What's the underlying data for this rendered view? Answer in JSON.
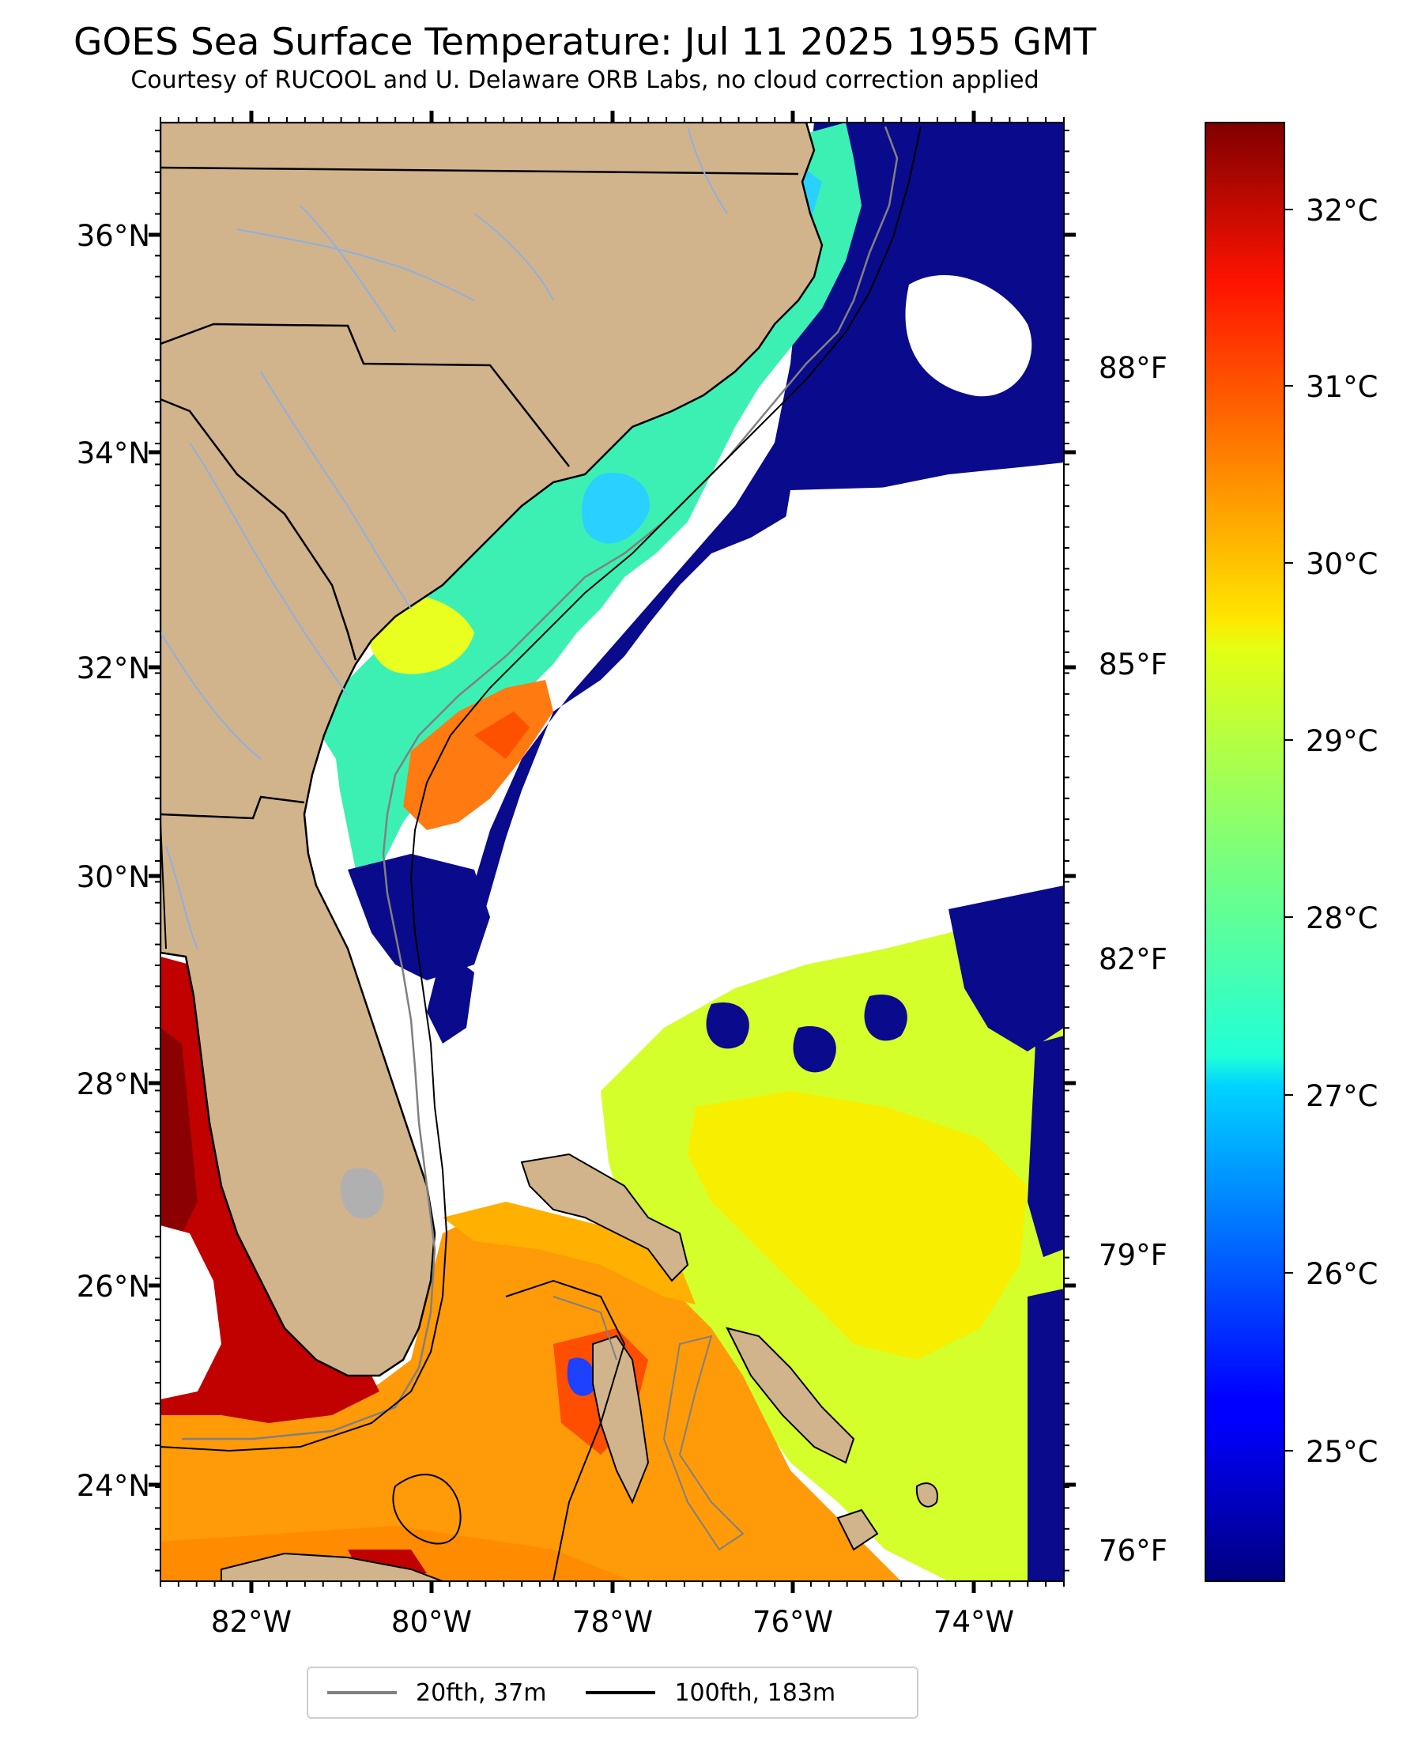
{
  "header": {
    "title": "GOES Sea Surface Temperature: Jul 11 2025 1955 GMT",
    "subtitle": "Courtesy of RUCOOL and U. Delaware ORB Labs, no cloud correction applied"
  },
  "map": {
    "lat_ticks": [
      "36°N",
      "34°N",
      "32°N",
      "30°N",
      "28°N",
      "26°N",
      "24°N"
    ],
    "lon_ticks": [
      "82°W",
      "80°W",
      "78°W",
      "76°W",
      "74°W"
    ],
    "fahrenheit_ticks": [
      "88°F",
      "85°F",
      "82°F",
      "79°F",
      "76°F"
    ],
    "extent": {
      "lon_min": -83,
      "lon_max": -73,
      "lat_min": 23.1,
      "lat_max": 37.0
    }
  },
  "colorbar": {
    "ticks": [
      "32°C",
      "31°C",
      "30°C",
      "29°C",
      "28°C",
      "27°C",
      "26°C",
      "25°C"
    ],
    "range_c": [
      24.5,
      32.5
    ],
    "colormap": "jet"
  },
  "legend": {
    "items": [
      {
        "label": "20fth, 37m",
        "color": "#808080"
      },
      {
        "label": "100fth, 183m",
        "color": "#000000"
      }
    ]
  },
  "colors": {
    "land": "#d2b48c",
    "ocean_cloud": "#ffffff",
    "border": "#000000"
  }
}
